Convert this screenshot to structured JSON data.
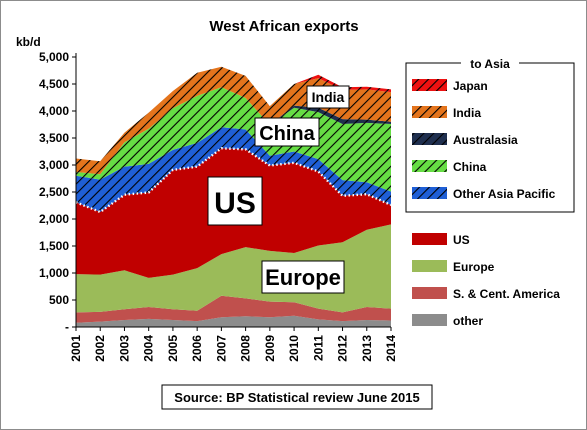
{
  "chart_data": {
    "type": "area",
    "title": "West African exports",
    "ylabel": "kb/d",
    "ylim": [
      0,
      5000
    ],
    "yticks": [
      "-",
      "500",
      "1,000",
      "1,500",
      "2,000",
      "2,500",
      "3,000",
      "3,500",
      "4,000",
      "4,500",
      "5,000"
    ],
    "ytick_values": [
      0,
      500,
      1000,
      1500,
      2000,
      2500,
      3000,
      3500,
      4000,
      4500,
      5000
    ],
    "categories": [
      "2001",
      "2002",
      "2003",
      "2004",
      "2005",
      "2006",
      "2007",
      "2008",
      "2009",
      "2010",
      "2011",
      "2012",
      "2013",
      "2014"
    ],
    "series": [
      {
        "name": "other",
        "color": "#8c8c8c",
        "values": [
          80,
          100,
          130,
          150,
          130,
          110,
          180,
          200,
          180,
          210,
          140,
          110,
          130,
          120
        ]
      },
      {
        "name": "S. & Cent. America",
        "color": "#c0504d",
        "values": [
          190,
          180,
          200,
          220,
          200,
          190,
          400,
          330,
          290,
          250,
          200,
          160,
          240,
          220
        ]
      },
      {
        "name": "Europe",
        "color": "#9bbb59",
        "values": [
          710,
          690,
          720,
          540,
          640,
          790,
          770,
          950,
          940,
          910,
          1170,
          1300,
          1430,
          1560
        ]
      },
      {
        "name": "US",
        "color": "#c00000",
        "values": [
          1330,
          1160,
          1400,
          1580,
          1940,
          1880,
          1960,
          1810,
          1580,
          1670,
          1370,
          860,
          660,
          360
        ]
      },
      {
        "name": "Other Asia Pacific",
        "color": "#1f5fd6",
        "values": [
          490,
          600,
          520,
          530,
          370,
          440,
          390,
          370,
          180,
          210,
          230,
          290,
          220,
          250
        ]
      },
      {
        "name": "China",
        "color": "#66dd44",
        "values": [
          70,
          100,
          450,
          650,
          770,
          870,
          740,
          580,
          570,
          810,
          870,
          1040,
          1100,
          1250
        ]
      },
      {
        "name": "Australasia",
        "color": "#1f2f4f",
        "values": [
          0,
          0,
          0,
          0,
          0,
          0,
          0,
          0,
          0,
          40,
          80,
          90,
          60,
          40
        ]
      },
      {
        "name": "India",
        "color": "#e4741c",
        "values": [
          250,
          240,
          180,
          300,
          320,
          430,
          380,
          410,
          350,
          400,
          550,
          540,
          560,
          550
        ]
      },
      {
        "name": "Japan",
        "color": "#ee1111",
        "values": [
          0,
          0,
          0,
          0,
          0,
          0,
          0,
          0,
          0,
          0,
          60,
          50,
          50,
          50
        ]
      }
    ],
    "legend_header": "to Asia",
    "legend_asia": [
      "Japan",
      "India",
      "Australasia",
      "China",
      "Other Asia Pacific"
    ],
    "legend_other": [
      "US",
      "Europe",
      "S. & Cent. America",
      "other"
    ],
    "annotations": [
      "US",
      "Europe",
      "China",
      "India"
    ],
    "source": "Source: BP Statistical review June 2015",
    "grid": false,
    "legend_placement": "right"
  }
}
